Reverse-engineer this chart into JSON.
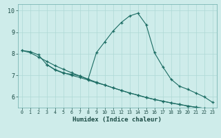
{
  "xlabel": "Humidex (Indice chaleur)",
  "bg_color": "#ceecea",
  "grid_color": "#aed8d5",
  "line_color": "#1a6b62",
  "xlim": [
    -0.5,
    23.5
  ],
  "ylim": [
    5.5,
    10.3
  ],
  "xticks": [
    0,
    1,
    2,
    3,
    4,
    5,
    6,
    7,
    8,
    9,
    10,
    11,
    12,
    13,
    14,
    15,
    16,
    17,
    18,
    19,
    20,
    21,
    22,
    23
  ],
  "yticks": [
    6,
    7,
    8,
    9,
    10
  ],
  "series1_x": [
    0,
    1,
    2,
    3,
    4,
    5,
    6,
    7,
    8,
    9,
    10,
    11,
    12,
    13,
    14,
    15,
    16,
    17,
    18,
    19,
    20,
    21,
    22,
    23
  ],
  "series1_y": [
    8.15,
    8.1,
    7.95,
    7.5,
    7.25,
    7.1,
    7.05,
    6.97,
    6.82,
    8.05,
    8.55,
    9.05,
    9.45,
    9.75,
    9.88,
    9.35,
    8.05,
    7.4,
    6.82,
    6.5,
    6.35,
    6.18,
    6.0,
    5.75
  ],
  "series2_x": [
    0,
    1,
    2,
    3,
    4,
    5,
    6,
    7,
    8,
    9,
    10,
    11,
    12,
    13,
    14,
    15,
    16,
    17,
    18,
    19,
    20,
    21,
    22,
    23
  ],
  "series2_y": [
    8.15,
    8.05,
    7.85,
    7.65,
    7.45,
    7.28,
    7.12,
    6.97,
    6.82,
    6.68,
    6.55,
    6.42,
    6.3,
    6.18,
    6.08,
    5.97,
    5.88,
    5.8,
    5.72,
    5.65,
    5.58,
    5.52,
    5.47,
    5.42
  ],
  "series3_x": [
    3,
    4,
    5,
    6,
    7,
    8,
    9,
    10,
    11,
    12,
    13,
    14,
    15,
    16,
    17,
    18,
    19,
    20,
    21,
    22,
    23
  ],
  "series3_y": [
    7.5,
    7.27,
    7.12,
    7.0,
    6.9,
    6.78,
    6.65,
    6.55,
    6.42,
    6.3,
    6.18,
    6.08,
    5.97,
    5.88,
    5.8,
    5.72,
    5.65,
    5.58,
    5.52,
    5.47,
    5.42
  ]
}
